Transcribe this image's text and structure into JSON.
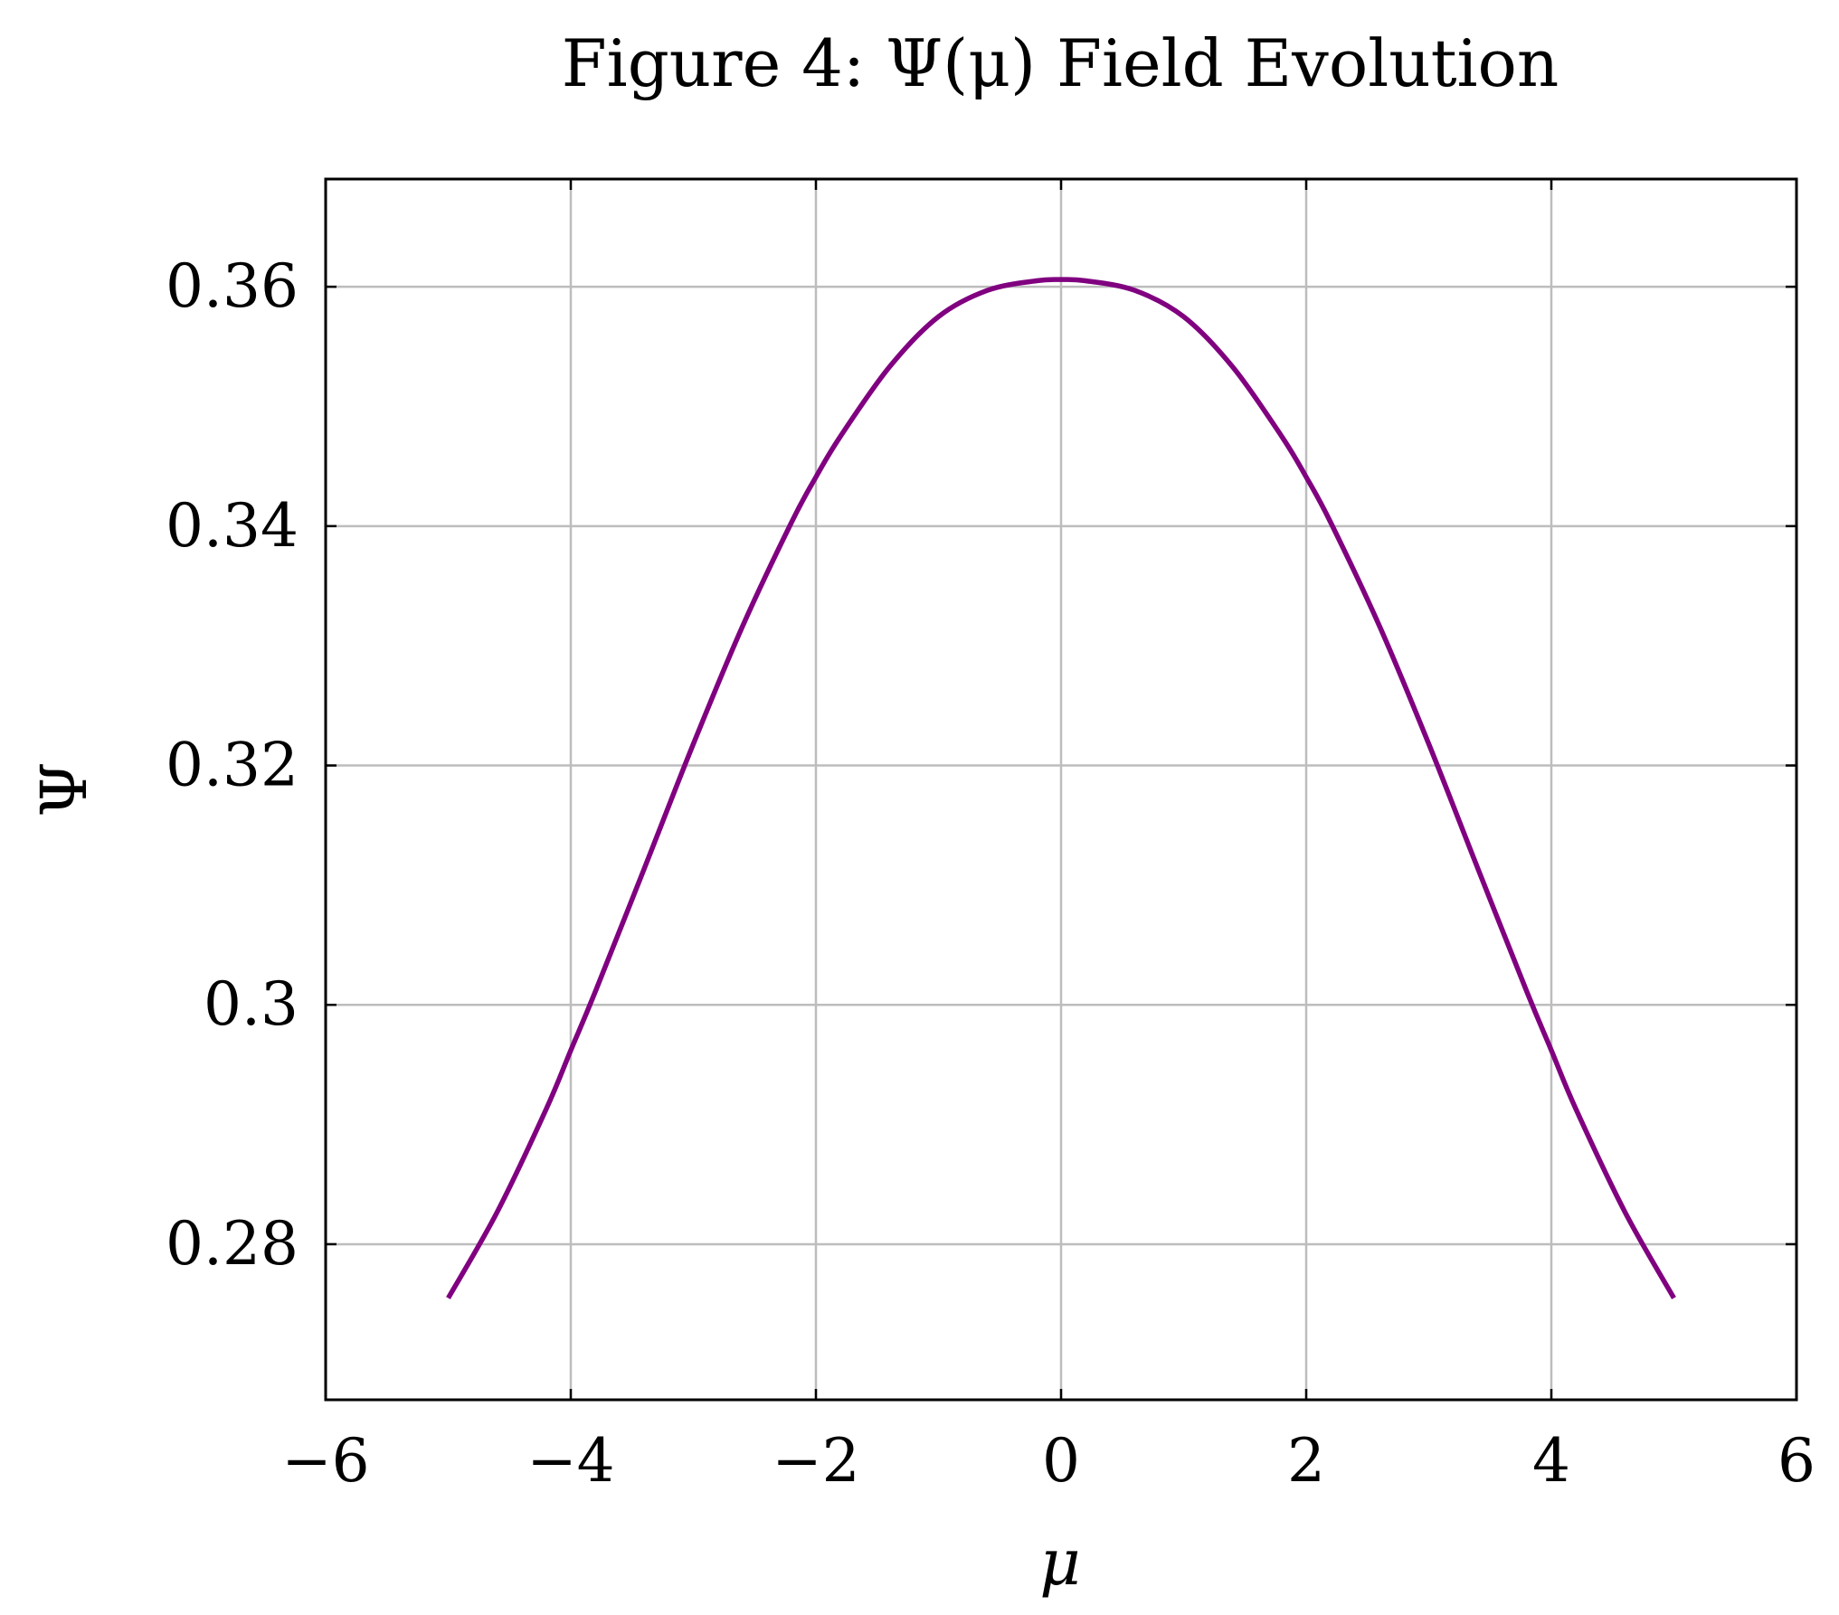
{
  "chart_data": {
    "type": "line",
    "title": "Figure 4: Ψ(μ) Field Evolution",
    "xlabel": "μ",
    "ylabel": "Ψ",
    "xlim": [
      -6,
      6
    ],
    "ylim": [
      0.267,
      0.369
    ],
    "xticks": [
      -6,
      -4,
      -2,
      0,
      2,
      4,
      6
    ],
    "xtick_labels": [
      "−6",
      "−4",
      "−2",
      "0",
      "2",
      "4",
      "6"
    ],
    "yticks": [
      0.28,
      0.3,
      0.32,
      0.34,
      0.36
    ],
    "ytick_labels": [
      "0.28",
      "0.3",
      "0.32",
      "0.34",
      "0.36"
    ],
    "grid": true,
    "line_color": "#800080",
    "series": [
      {
        "x": [
          -5,
          -4.6,
          -4.2,
          -4,
          -3.8,
          -3.4,
          -3,
          -2.6,
          -2.2,
          -2,
          -1.8,
          -1.4,
          -1,
          -0.6,
          -0.2,
          0,
          0.2,
          0.6,
          1,
          1.4,
          1.8,
          2,
          2.2,
          2.6,
          3,
          3.4,
          3.8,
          4,
          4.2,
          4.6,
          5
        ],
        "y": [
          0.2755,
          0.2827,
          0.2913,
          0.2962,
          0.3011,
          0.3114,
          0.3218,
          0.3316,
          0.3403,
          0.3441,
          0.3475,
          0.3533,
          0.3575,
          0.3597,
          0.3605,
          0.3606,
          0.3605,
          0.3597,
          0.3575,
          0.3533,
          0.3475,
          0.3441,
          0.3403,
          0.3316,
          0.3218,
          0.3114,
          0.3011,
          0.2962,
          0.2913,
          0.2827,
          0.2755
        ]
      }
    ]
  }
}
